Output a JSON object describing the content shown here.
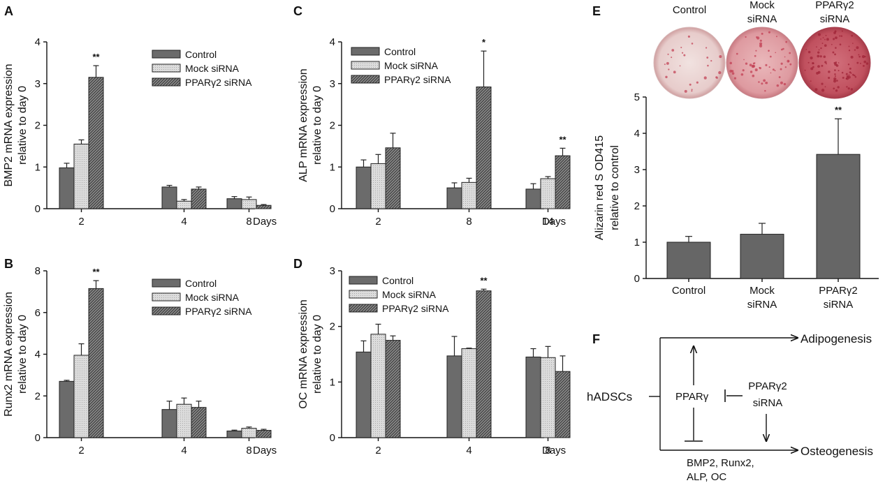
{
  "series_styles": {
    "Control": "#6b6b6b",
    "Mock siRNA": "#d0d0d0",
    "PPARγ2 siRNA": "#555555"
  },
  "chart_data": [
    {
      "id": "A",
      "panel_label": "A",
      "type": "bar",
      "categories": [
        "2",
        "4",
        "8"
      ],
      "xlabel": "Days",
      "ylabel": [
        "BMP2 mRNA expression",
        "relative to day 0"
      ],
      "ylim": [
        0,
        4
      ],
      "yticks": [
        0,
        1,
        2,
        3,
        4
      ],
      "legend": "top-right",
      "series": [
        {
          "name": "Control",
          "values": [
            0.98,
            0.52,
            0.24
          ],
          "errors": [
            0.11,
            0.04,
            0.05
          ]
        },
        {
          "name": "Mock siRNA",
          "values": [
            1.55,
            0.18,
            0.22
          ],
          "errors": [
            0.1,
            0.04,
            0.06
          ]
        },
        {
          "name": "PPARγ2 siRNA",
          "values": [
            3.15,
            0.47,
            0.08
          ],
          "errors": [
            0.28,
            0.05,
            0.02
          ]
        }
      ],
      "annotations": [
        {
          "category": 0,
          "series": 2,
          "text": "**"
        }
      ]
    },
    {
      "id": "B",
      "panel_label": "B",
      "type": "bar",
      "categories": [
        "2",
        "4",
        "8"
      ],
      "xlabel": "Days",
      "ylabel": [
        "Runx2 mRNA expression",
        "relative to day 0"
      ],
      "ylim": [
        0,
        8
      ],
      "yticks": [
        0,
        2,
        4,
        6,
        8
      ],
      "legend": "top-right",
      "series": [
        {
          "name": "Control",
          "values": [
            2.7,
            1.35,
            0.32
          ],
          "errors": [
            0.05,
            0.4,
            0.04
          ]
        },
        {
          "name": "Mock siRNA",
          "values": [
            3.95,
            1.6,
            0.45
          ],
          "errors": [
            0.55,
            0.3,
            0.06
          ]
        },
        {
          "name": "PPARγ2 siRNA",
          "values": [
            7.15,
            1.45,
            0.35
          ],
          "errors": [
            0.38,
            0.3,
            0.05
          ]
        }
      ],
      "annotations": [
        {
          "category": 0,
          "series": 2,
          "text": "**"
        }
      ]
    },
    {
      "id": "C",
      "panel_label": "C",
      "type": "bar",
      "categories": [
        "2",
        "8",
        "14"
      ],
      "xlabel": "Days",
      "ylabel": [
        "ALP mRNA expression",
        "relative to day 0"
      ],
      "ylim": [
        0,
        4
      ],
      "yticks": [
        0,
        1,
        2,
        3,
        4
      ],
      "legend": "top-left",
      "series": [
        {
          "name": "Control",
          "values": [
            1.0,
            0.5,
            0.47
          ],
          "errors": [
            0.17,
            0.12,
            0.13
          ]
        },
        {
          "name": "Mock siRNA",
          "values": [
            1.08,
            0.63,
            0.72
          ],
          "errors": [
            0.22,
            0.1,
            0.05
          ]
        },
        {
          "name": "PPARγ2 siRNA",
          "values": [
            1.46,
            2.92,
            1.27
          ],
          "errors": [
            0.35,
            0.86,
            0.18
          ]
        }
      ],
      "annotations": [
        {
          "category": 1,
          "series": 2,
          "text": "*"
        },
        {
          "category": 2,
          "series": 2,
          "text": "**"
        }
      ]
    },
    {
      "id": "D",
      "panel_label": "D",
      "type": "bar",
      "categories": [
        "2",
        "4",
        "8"
      ],
      "xlabel": "Days",
      "ylabel": [
        "OC mRNA expression",
        "relative to day 0"
      ],
      "ylim": [
        0,
        3
      ],
      "yticks": [
        0,
        1,
        2,
        3
      ],
      "legend": "top-left",
      "series": [
        {
          "name": "Control",
          "values": [
            1.54,
            1.47,
            1.45
          ],
          "errors": [
            0.2,
            0.35,
            0.15
          ]
        },
        {
          "name": "Mock siRNA",
          "values": [
            1.86,
            1.6,
            1.44
          ],
          "errors": [
            0.18,
            0.01,
            0.2
          ]
        },
        {
          "name": "PPARγ2 siRNA",
          "values": [
            1.75,
            2.64,
            1.19
          ],
          "errors": [
            0.08,
            0.03,
            0.28
          ]
        }
      ],
      "annotations": [
        {
          "category": 1,
          "series": 2,
          "text": "**"
        }
      ]
    },
    {
      "id": "E",
      "panel_label": "E",
      "type": "bar",
      "categories": [
        [
          "Control"
        ],
        [
          "Mock",
          "siRNA"
        ],
        [
          "PPARγ2",
          "siRNA"
        ]
      ],
      "ylabel": [
        "Alizarin red S OD415",
        "relative to control"
      ],
      "ylim": [
        0,
        5
      ],
      "yticks": [
        0,
        1,
        2,
        3,
        4,
        5
      ],
      "series": [
        {
          "values": [
            1.0,
            1.22,
            3.42
          ],
          "errors": [
            0.16,
            0.3,
            0.98
          ]
        }
      ],
      "annotations": [
        {
          "category": 2,
          "series": 0,
          "text": "**"
        }
      ],
      "well_labels": [
        [
          "Control"
        ],
        [
          "Mock",
          "siRNA"
        ],
        [
          "PPARγ2",
          "siRNA"
        ]
      ]
    }
  ],
  "diagram_f": {
    "panel_label": "F",
    "source": "hADSCs",
    "center": "PPARγ",
    "inhibitor": [
      "PPARγ2",
      "siRNA"
    ],
    "outcome_top": "Adipogenesis",
    "outcome_bottom": "Osteogenesis",
    "markers": [
      "BMP2, Runx2,",
      "ALP, OC"
    ]
  }
}
